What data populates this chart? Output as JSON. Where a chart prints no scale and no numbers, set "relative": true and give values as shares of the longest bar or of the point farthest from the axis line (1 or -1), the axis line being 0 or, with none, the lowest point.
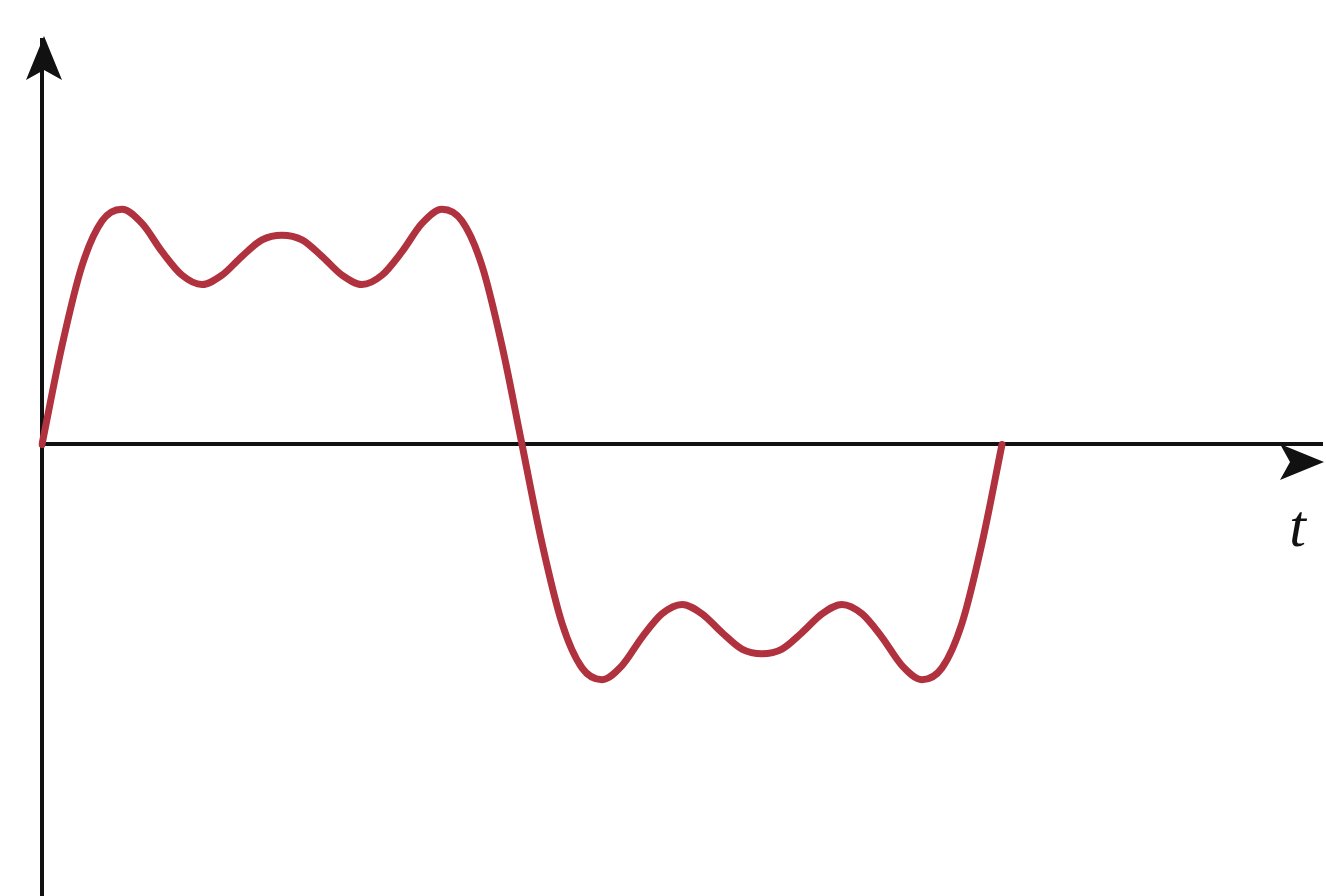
{
  "chart_data": {
    "type": "line",
    "relative": true,
    "xlabel": "t",
    "categories": [
      null,
      null,
      null,
      null,
      null,
      null,
      null,
      null,
      null,
      null,
      null,
      null,
      null,
      null,
      null,
      null,
      null,
      null,
      null,
      null,
      null,
      null,
      null,
      null,
      null,
      null,
      null,
      null,
      null,
      null,
      null,
      null,
      null,
      null,
      null,
      null,
      null,
      null,
      null,
      null,
      null,
      null,
      null,
      null,
      null,
      null,
      null,
      null,
      null,
      null,
      null,
      null,
      null,
      null,
      null,
      null,
      null,
      null,
      null,
      null,
      null,
      null,
      null,
      null,
      null
    ],
    "series": [
      {
        "color": "#b0323f",
        "values": [
          0,
          0.42,
          0.76,
          0.95,
          1,
          0.94,
          0.82,
          0.72,
          0.68,
          0.72,
          0.8,
          0.87,
          0.89,
          0.87,
          0.8,
          0.72,
          0.68,
          0.72,
          0.82,
          0.94,
          1,
          0.95,
          0.76,
          0.42,
          0,
          -0.42,
          -0.76,
          -0.95,
          -1,
          -0.94,
          -0.82,
          -0.72,
          -0.68,
          -0.72,
          -0.8,
          -0.87,
          -0.89,
          -0.87,
          -0.8,
          -0.72,
          -0.68,
          -0.72,
          -0.82,
          -0.94,
          -1,
          -0.95,
          -0.76,
          -0.42,
          0,
          null,
          null,
          null,
          null,
          null,
          null,
          null,
          null,
          null,
          null,
          null,
          null,
          null,
          null,
          null,
          null
        ]
      }
    ],
    "grid": false,
    "legend": false,
    "marker": "none",
    "line_style": "solid"
  }
}
